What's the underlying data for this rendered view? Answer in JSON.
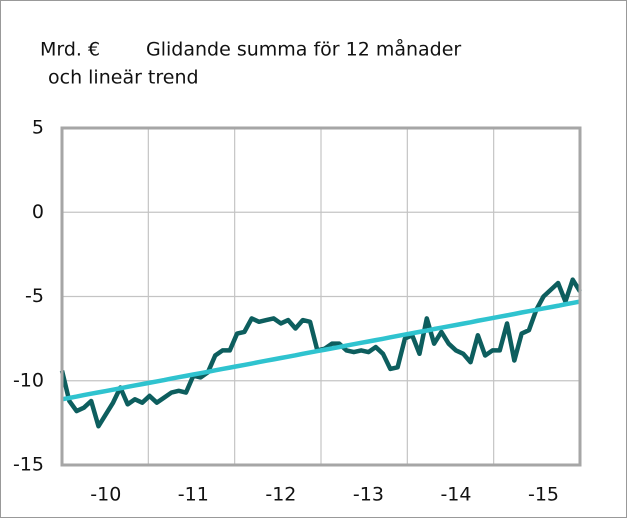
{
  "chart_data": {
    "type": "line",
    "unit": "Mrd. €",
    "title": [
      "Glidande summa för 12 månader",
      "och lineär trend"
    ],
    "categories": [
      null,
      null,
      null,
      null,
      null,
      null,
      "-10",
      null,
      null,
      null,
      null,
      null,
      null,
      null,
      null,
      null,
      null,
      null,
      "-11",
      null,
      null,
      null,
      null,
      null,
      null,
      null,
      null,
      null,
      null,
      null,
      "-12",
      null,
      null,
      null,
      null,
      null,
      null,
      null,
      null,
      null,
      null,
      null,
      "-13",
      null,
      null,
      null,
      null,
      null,
      null,
      null,
      null,
      null,
      null,
      null,
      "-14",
      null,
      null,
      null,
      null,
      null,
      null,
      null,
      null,
      null,
      null,
      null,
      "-15",
      null,
      null,
      null,
      null,
      null
    ],
    "series": [
      {
        "color": "#0d5e5e",
        "values": [
          -9.4,
          -11.2,
          -11.8,
          -11.6,
          -11.2,
          -12.7,
          -12.0,
          -11.3,
          -10.4,
          -11.4,
          -11.1,
          -11.3,
          -10.9,
          -11.3,
          -11.0,
          -10.7,
          -10.6,
          -10.7,
          -9.7,
          -9.8,
          -9.5,
          -8.5,
          -8.2,
          -8.2,
          -7.2,
          -7.1,
          -6.3,
          -6.5,
          -6.4,
          -6.3,
          -6.6,
          -6.4,
          -6.9,
          -6.4,
          -6.5,
          -8.2,
          -8.1,
          -7.8,
          -7.8,
          -8.2,
          -8.3,
          -8.2,
          -8.3,
          -8.0,
          -8.4,
          -9.3,
          -9.2,
          -7.5,
          -7.3,
          -8.4,
          -6.3,
          -7.8,
          -7.1,
          -7.8,
          -8.2,
          -8.4,
          -8.9,
          -7.3,
          -8.5,
          -8.2,
          -8.2,
          -6.6,
          -8.8,
          -7.2,
          -7.0,
          -5.8,
          -5.0,
          -4.6,
          -4.2,
          -5.3,
          -4.0,
          -4.7
        ]
      },
      {
        "color": "#2fc3cf",
        "values": [
          -11.1,
          -11.02,
          -10.94,
          -10.85,
          -10.77,
          -10.69,
          -10.61,
          -10.53,
          -10.45,
          -10.36,
          -10.28,
          -10.2,
          -10.12,
          -10.04,
          -9.96,
          -9.87,
          -9.79,
          -9.71,
          -9.63,
          -9.55,
          -9.47,
          -9.38,
          -9.3,
          -9.22,
          -9.14,
          -9.06,
          -8.98,
          -8.89,
          -8.81,
          -8.73,
          -8.65,
          -8.57,
          -8.49,
          -8.4,
          -8.32,
          -8.24,
          -8.16,
          -8.08,
          -8.0,
          -7.91,
          -7.83,
          -7.75,
          -7.67,
          -7.59,
          -7.51,
          -7.42,
          -7.34,
          -7.26,
          -7.18,
          -7.1,
          -7.02,
          -6.93,
          -6.85,
          -6.77,
          -6.69,
          -6.61,
          -6.53,
          -6.44,
          -6.36,
          -6.28,
          -6.2,
          -6.12,
          -6.04,
          -5.95,
          -5.87,
          -5.79,
          -5.71,
          -5.63,
          -5.55,
          -5.46,
          -5.38,
          -5.3
        ]
      }
    ],
    "ylim": [
      -15,
      5
    ],
    "yticks": [
      5,
      0,
      -5,
      -10,
      -15
    ],
    "grid": true
  }
}
